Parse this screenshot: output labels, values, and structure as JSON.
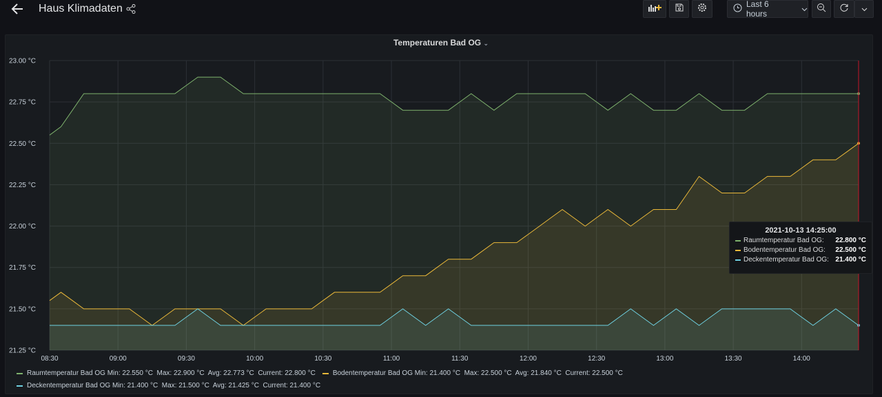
{
  "header": {
    "title": "Haus Klimadaten",
    "time_range": "Last 6 hours",
    "icons": [
      "arrow-left-icon",
      "share-icon",
      "add-panel-icon",
      "save-icon",
      "gear-icon",
      "clock-icon",
      "chevron-down-icon",
      "zoom-out-icon",
      "refresh-icon",
      "chevron-down-icon"
    ]
  },
  "panel": {
    "title": "Temperaturen Bad OG"
  },
  "colors": {
    "raum": "#7eb26d",
    "boden": "#eab839",
    "decken": "#6ed0e0",
    "cursor": "#c4162a"
  },
  "chart_data": {
    "type": "line",
    "title": "Temperaturen Bad OG",
    "y_unit": "°C",
    "ylim": [
      21.25,
      23.0
    ],
    "y_ticks": [
      "23.00 °C",
      "22.75 °C",
      "22.50 °C",
      "22.25 °C",
      "22.00 °C",
      "21.75 °C",
      "21.50 °C",
      "21.25 °C"
    ],
    "y_tick_values": [
      23.0,
      22.75,
      22.5,
      22.25,
      22.0,
      21.75,
      21.5,
      21.25
    ],
    "x_ticks": [
      "08:30",
      "09:00",
      "09:30",
      "10:00",
      "10:30",
      "11:00",
      "11:30",
      "12:00",
      "12:30",
      "13:00",
      "13:30",
      "14:00"
    ],
    "x_start": "08:30",
    "x_step_minutes": 5,
    "grid": true,
    "fill": true,
    "series": [
      {
        "name": "Raumtemperatur Bad OG",
        "color": "#7eb26d",
        "values": [
          22.55,
          22.6,
          22.7,
          22.8,
          22.8,
          22.8,
          22.8,
          22.8,
          22.8,
          22.8,
          22.8,
          22.8,
          22.85,
          22.9,
          22.9,
          22.9,
          22.85,
          22.8,
          22.8,
          22.8,
          22.8,
          22.8,
          22.8,
          22.8,
          22.8,
          22.8,
          22.8,
          22.8,
          22.8,
          22.8,
          22.75,
          22.7,
          22.7,
          22.7,
          22.7,
          22.7,
          22.75,
          22.8,
          22.75,
          22.7,
          22.75,
          22.8,
          22.8,
          22.8,
          22.8,
          22.8,
          22.8,
          22.8,
          22.75,
          22.7,
          22.75,
          22.8,
          22.75,
          22.7,
          22.7,
          22.7,
          22.75,
          22.8,
          22.75,
          22.7,
          22.7,
          22.7,
          22.75,
          22.8,
          22.8,
          22.8,
          22.8,
          22.8,
          22.8,
          22.8,
          22.8,
          22.8
        ]
      },
      {
        "name": "Bodentemperatur Bad OG",
        "color": "#eab839",
        "values": [
          21.55,
          21.6,
          21.55,
          21.5,
          21.5,
          21.5,
          21.5,
          21.5,
          21.45,
          21.4,
          21.45,
          21.5,
          21.5,
          21.5,
          21.5,
          21.5,
          21.45,
          21.4,
          21.45,
          21.5,
          21.5,
          21.5,
          21.5,
          21.5,
          21.55,
          21.6,
          21.6,
          21.6,
          21.6,
          21.6,
          21.65,
          21.7,
          21.7,
          21.7,
          21.75,
          21.8,
          21.8,
          21.8,
          21.85,
          21.9,
          21.9,
          21.9,
          21.95,
          22.0,
          22.05,
          22.1,
          22.05,
          22.0,
          22.05,
          22.1,
          22.05,
          22.0,
          22.05,
          22.1,
          22.1,
          22.1,
          22.2,
          22.3,
          22.25,
          22.2,
          22.2,
          22.2,
          22.25,
          22.3,
          22.3,
          22.3,
          22.35,
          22.4,
          22.4,
          22.4,
          22.45,
          22.5
        ]
      },
      {
        "name": "Deckentemperatur Bad OG",
        "color": "#6ed0e0",
        "values": [
          21.4,
          21.4,
          21.4,
          21.4,
          21.4,
          21.4,
          21.4,
          21.4,
          21.4,
          21.4,
          21.4,
          21.4,
          21.45,
          21.5,
          21.45,
          21.4,
          21.4,
          21.4,
          21.4,
          21.4,
          21.4,
          21.4,
          21.4,
          21.4,
          21.4,
          21.4,
          21.4,
          21.4,
          21.4,
          21.4,
          21.45,
          21.5,
          21.45,
          21.4,
          21.45,
          21.5,
          21.45,
          21.4,
          21.4,
          21.4,
          21.4,
          21.4,
          21.4,
          21.4,
          21.4,
          21.4,
          21.4,
          21.4,
          21.4,
          21.4,
          21.45,
          21.5,
          21.45,
          21.4,
          21.45,
          21.5,
          21.45,
          21.4,
          21.45,
          21.5,
          21.5,
          21.5,
          21.5,
          21.5,
          21.5,
          21.5,
          21.45,
          21.4,
          21.45,
          21.5,
          21.45,
          21.4
        ]
      }
    ]
  },
  "legend": {
    "items": [
      {
        "name": "Raumtemperatur Bad OG",
        "stats": "Min: 22.550 °C  Max: 22.900 °C  Avg: 22.773 °C  Current: 22.800 °C",
        "color": "#7eb26d"
      },
      {
        "name": "Bodentemperatur Bad OG",
        "stats": "Min: 21.400 °C  Max: 22.500 °C  Avg: 21.840 °C  Current: 22.500 °C",
        "color": "#eab839"
      },
      {
        "name": "Deckentemperatur Bad OG",
        "stats": "Min: 21.400 °C  Max: 21.500 °C  Avg: 21.425 °C  Current: 21.400 °C",
        "color": "#6ed0e0"
      }
    ]
  },
  "tooltip": {
    "time": "2021-10-13 14:25:00",
    "rows": [
      {
        "name": "Raumtemperatur Bad OG:",
        "value": "22.800 °C",
        "color": "#7eb26d"
      },
      {
        "name": "Bodentemperatur Bad OG:",
        "value": "22.500 °C",
        "color": "#eab839"
      },
      {
        "name": "Deckentemperatur Bad OG:",
        "value": "21.400 °C",
        "color": "#6ed0e0"
      }
    ]
  }
}
